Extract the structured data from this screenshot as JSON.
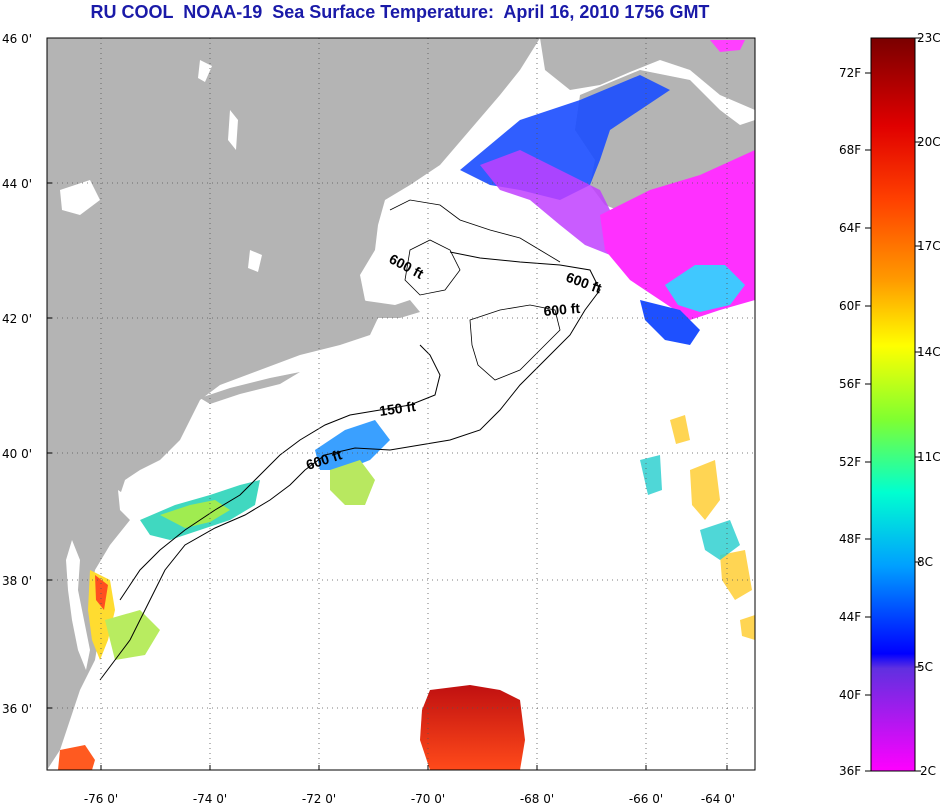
{
  "title": "RU COOL  NOAA-19  Sea Surface Temperature:  April 16, 2010 1756 GMT",
  "map": {
    "latitude_ticks": [
      "46 0'",
      "44 0'",
      "42 0'",
      "40 0'",
      "38 0'",
      "36 0'"
    ],
    "longitude_ticks": [
      "-76 0'",
      "-74 0'",
      "-72 0'",
      "-70 0'",
      "-68 0'",
      "-66 0'",
      "-64 0'"
    ],
    "grid": "dotted",
    "contour_labels": [
      {
        "id": "c600-a",
        "text": "600 ft"
      },
      {
        "id": "c600-b",
        "text": "600 ft"
      },
      {
        "id": "c600-c",
        "text": "600 ft"
      },
      {
        "id": "c150",
        "text": "150 ft"
      },
      {
        "id": "c600-d",
        "text": "600 ft"
      }
    ],
    "colors": {
      "land": "#b4b4b4",
      "ocean_no_data": "#ffffff",
      "contour": "#000000"
    }
  },
  "colorbar": {
    "fahrenheit_labels": [
      "72F",
      "68F",
      "64F",
      "60F",
      "56F",
      "52F",
      "48F",
      "44F",
      "40F",
      "36F"
    ],
    "celsius_labels": [
      "23C",
      "20C",
      "17C",
      "14C",
      "11C",
      "8C",
      "5C",
      "2C"
    ],
    "range_c": [
      2,
      23
    ],
    "range_f": [
      36,
      73
    ]
  }
}
